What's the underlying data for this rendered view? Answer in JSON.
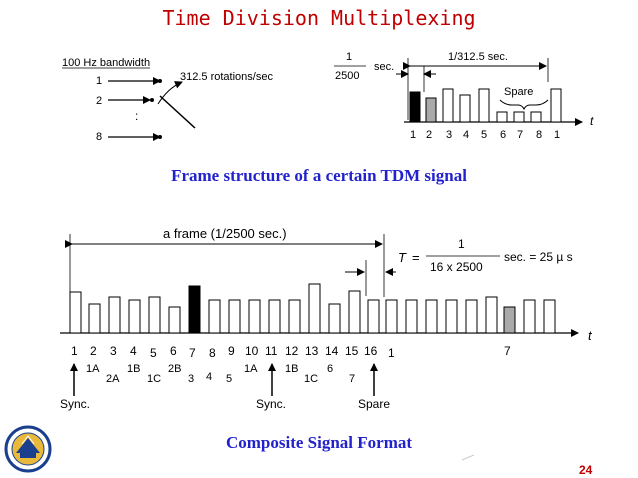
{
  "title": "Time Division Multiplexing",
  "page_number": "24",
  "captions": {
    "top": "Frame structure of a certain TDM signal",
    "bottom": "Composite Signal Format"
  },
  "mux": {
    "bandwidth_label": "100 Hz bandwidth",
    "inputs": [
      "1",
      "2",
      "8"
    ],
    "dots": ":",
    "rotation_label": "312.5 rotations/sec"
  },
  "frame_top": {
    "sec_num": "1",
    "sec_den": "2500",
    "sec_unit": "sec.",
    "period_label": "1/312.5 sec.",
    "spare_label": "Spare",
    "axis_label": "t",
    "pulse_labels": [
      "1",
      "2",
      "3",
      "4",
      "5",
      "6",
      "7",
      "8",
      "1"
    ]
  },
  "frame_bottom": {
    "frame_label": "a frame (1/2500 sec.)",
    "T_label": "T",
    "eq": "=",
    "frac_num": "1",
    "frac_den": "16 x 2500",
    "result": "sec. = 25 µ s",
    "axis_label": "t",
    "slot_numbers": [
      "1",
      "2",
      "3",
      "4",
      "5",
      "6",
      "7",
      "8",
      "9",
      "10",
      "11",
      "12",
      "13",
      "14",
      "15",
      "16",
      "1",
      "7"
    ],
    "channel_labels": [
      "1A",
      "2A",
      "1B",
      "1C",
      "2B",
      "3",
      "4",
      "5",
      "1A",
      "1B",
      "1C",
      "6",
      "7"
    ],
    "sync_labels": [
      "Sync.",
      "Sync."
    ],
    "spare_label": "Spare"
  },
  "colors": {
    "title": "#c00000",
    "caption": "#2222cc",
    "black_pulse": "#000000",
    "gray_pulse": "#aaaaaa"
  }
}
